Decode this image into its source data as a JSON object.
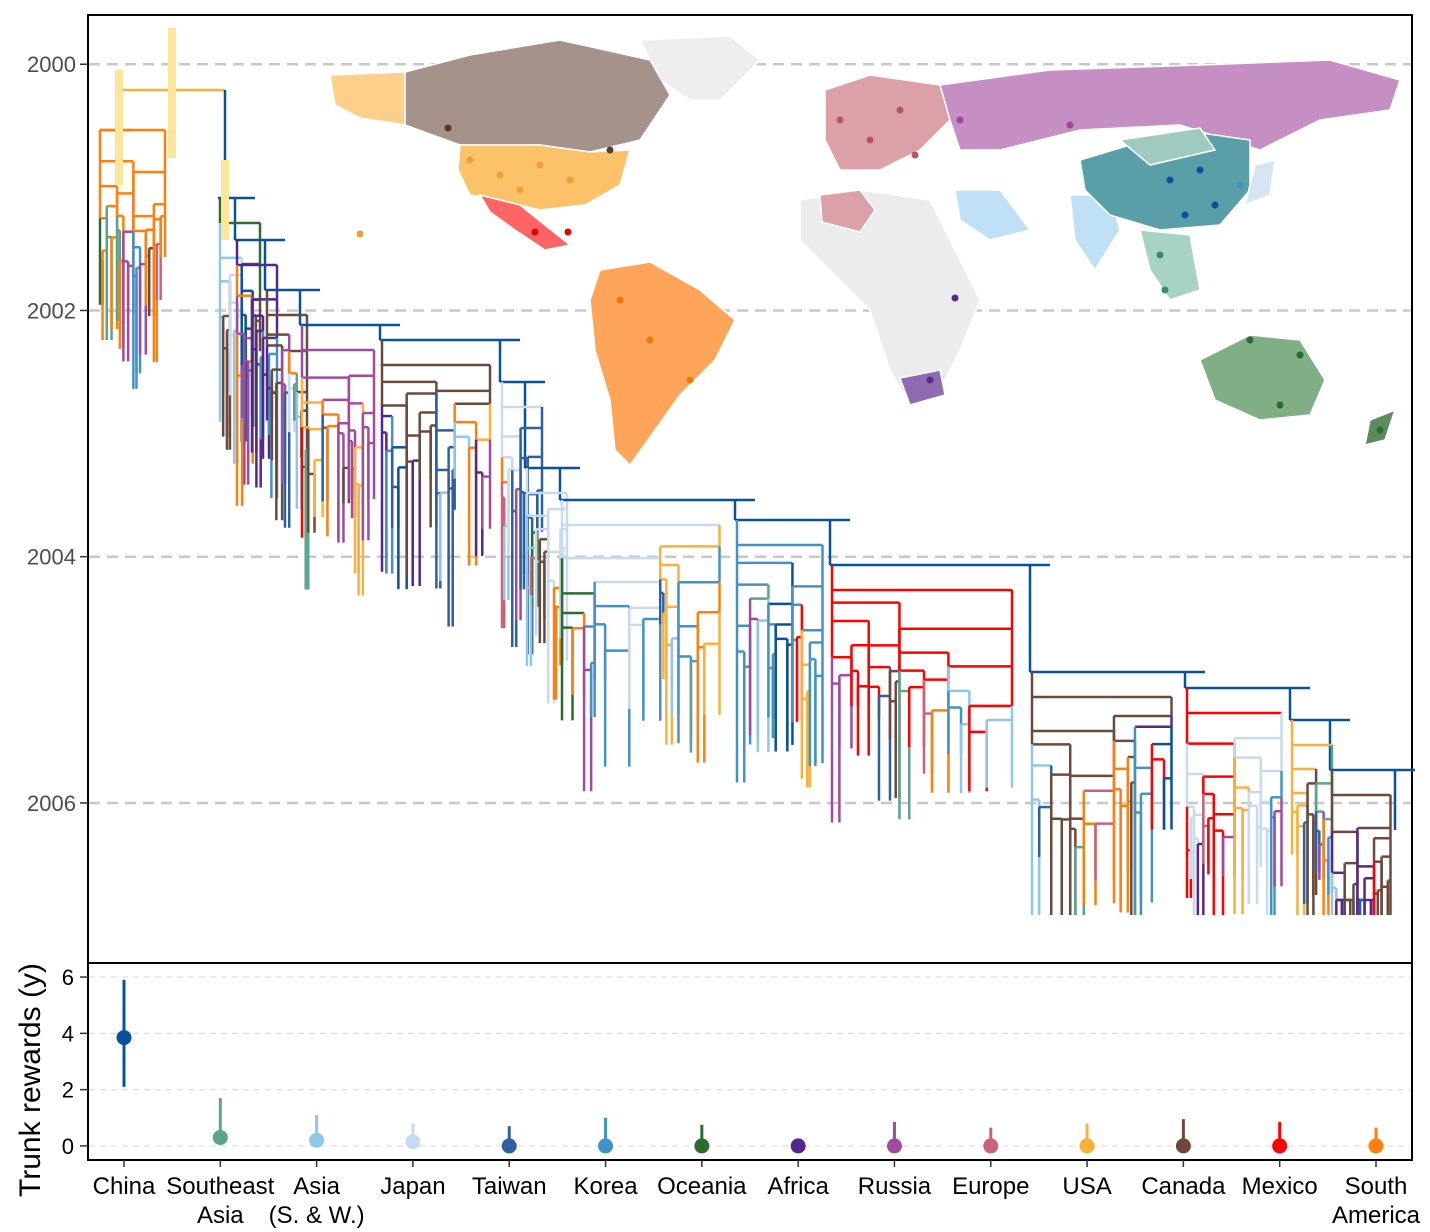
{
  "chart_data": [
    {
      "type": "tree",
      "y_axis": {
        "ticks": [
          2000,
          2002,
          2004,
          2006
        ],
        "tick_labels": [
          "2000",
          "2002",
          "2004",
          "2006"
        ],
        "range": [
          1999.6,
          2007.3
        ],
        "reversed": true
      },
      "grid": "dashed horizontal",
      "inset": "world map with regions colored by category",
      "colors": {
        "China": "#08519c",
        "Southeast Asia": "#5aa48f",
        "Asia (S. & W.)": "#8fc6ea",
        "Japan": "#c6dbef",
        "Taiwan": "#2c5fa3",
        "Korea": "#4292c6",
        "Oceania": "#2e6b30",
        "Africa": "#54278f",
        "Russia": "#a24a9e",
        "Europe": "#c8637a",
        "USA": "#fbb03b",
        "Canada": "#6b4a3b",
        "Mexico": "#ff0000",
        "South America": "#ff7f0e"
      }
    },
    {
      "type": "scatter",
      "ylabel": "Trunk rewards (y)",
      "ylim": [
        -0.5,
        6.5
      ],
      "y_ticks": [
        0,
        2,
        4,
        6
      ],
      "y_tick_labels": [
        "0",
        "2",
        "4",
        "6"
      ],
      "grid": "dashed horizontal",
      "categories": [
        {
          "lines": [
            "China"
          ],
          "color": "#08519c"
        },
        {
          "lines": [
            "Southeast",
            "Asia"
          ],
          "color": "#5aa48f"
        },
        {
          "lines": [
            "Asia",
            "(S. & W.)"
          ],
          "color": "#8fc6ea"
        },
        {
          "lines": [
            "Japan"
          ],
          "color": "#c6dbef"
        },
        {
          "lines": [
            "Taiwan"
          ],
          "color": "#2c5fa3"
        },
        {
          "lines": [
            "Korea"
          ],
          "color": "#4292c6"
        },
        {
          "lines": [
            "Oceania"
          ],
          "color": "#2e6b30"
        },
        {
          "lines": [
            "Africa"
          ],
          "color": "#54278f"
        },
        {
          "lines": [
            "Russia"
          ],
          "color": "#a24a9e"
        },
        {
          "lines": [
            "Europe"
          ],
          "color": "#c8637a"
        },
        {
          "lines": [
            "USA"
          ],
          "color": "#fbb03b"
        },
        {
          "lines": [
            "Canada"
          ],
          "color": "#6b4a3b"
        },
        {
          "lines": [
            "Mexico"
          ],
          "color": "#ff0000"
        },
        {
          "lines": [
            "South",
            "America"
          ],
          "color": "#ff7f0e"
        }
      ],
      "points": [
        {
          "mean": 3.85,
          "low": 2.1,
          "high": 5.9
        },
        {
          "mean": 0.3,
          "low": 0.05,
          "high": 1.7
        },
        {
          "mean": 0.2,
          "low": 0.0,
          "high": 1.1
        },
        {
          "mean": 0.15,
          "low": 0.0,
          "high": 0.8
        },
        {
          "mean": 0.0,
          "low": 0.0,
          "high": 0.7
        },
        {
          "mean": 0.0,
          "low": 0.0,
          "high": 1.0
        },
        {
          "mean": 0.0,
          "low": 0.0,
          "high": 0.75
        },
        {
          "mean": 0.0,
          "low": 0.0,
          "high": 0.2
        },
        {
          "mean": 0.0,
          "low": 0.0,
          "high": 0.85
        },
        {
          "mean": 0.0,
          "low": 0.0,
          "high": 0.65
        },
        {
          "mean": 0.0,
          "low": 0.0,
          "high": 0.8
        },
        {
          "mean": 0.0,
          "low": 0.0,
          "high": 0.95
        },
        {
          "mean": 0.0,
          "low": 0.0,
          "high": 0.85
        },
        {
          "mean": 0.0,
          "low": 0.0,
          "high": 0.65
        }
      ]
    }
  ]
}
